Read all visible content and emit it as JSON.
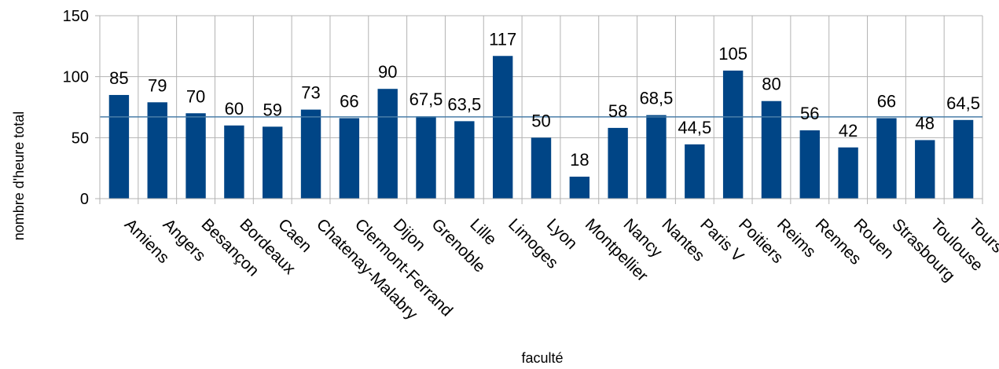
{
  "chart_data": {
    "type": "bar",
    "title": "",
    "xlabel": "faculté",
    "ylabel": "nombre d'heure total",
    "ylim": [
      0,
      150
    ],
    "yticks": [
      "0",
      "50",
      "100",
      "150"
    ],
    "grid": true,
    "legend": "none",
    "bar_color": "#004586",
    "mean_line_color": "#4a7ea8",
    "mean_value": 67,
    "categories": [
      "Amiens",
      "Angers",
      "Besançon",
      "Bordeaux",
      "Caen",
      "Chatenay-Malabry",
      "Clermont-Ferrand",
      "Dijon",
      "Grenoble",
      "Lille",
      "Limoges",
      "Lyon",
      "Montpellier",
      "Nancy",
      "Nantes",
      "Paris V",
      "Poitiers",
      "Reims",
      "Rennes",
      "Rouen",
      "Strasbourg",
      "Toulouse",
      "Tours"
    ],
    "values": [
      85,
      79,
      70,
      60,
      59,
      73,
      66,
      90,
      67.5,
      63.5,
      117,
      50,
      18,
      58,
      68.5,
      44.5,
      105,
      80,
      56,
      42,
      66,
      48,
      64.5
    ],
    "data_labels": [
      "85",
      "79",
      "70",
      "60",
      "59",
      "73",
      "66",
      "90",
      "67,5",
      "63,5",
      "117",
      "50",
      "18",
      "58",
      "68,5",
      "44,5",
      "105",
      "80",
      "56",
      "42",
      "66",
      "48",
      "64,5"
    ]
  }
}
